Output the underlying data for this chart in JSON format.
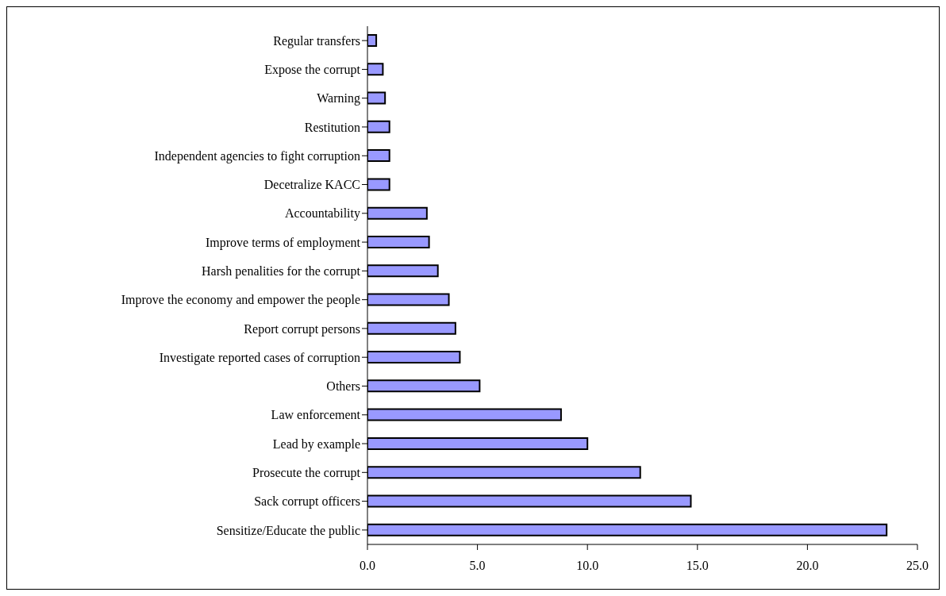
{
  "chart_data": {
    "type": "bar",
    "orientation": "horizontal",
    "categories": [
      "Regular transfers",
      "Expose the corrupt",
      "Warning",
      "Restitution",
      "Independent agencies to fight corruption",
      "Decetralize KACC",
      "Accountability",
      "Improve terms of employment",
      "Harsh penalities for the corrupt",
      "Improve the economy and empower the people",
      "Report corrupt persons",
      "Investigate reported cases of corruption",
      "Others",
      "Law enforcement",
      "Lead by example",
      "Prosecute the corrupt",
      "Sack corrupt officers",
      "Sensitize/Educate the public"
    ],
    "values": [
      0.4,
      0.7,
      0.8,
      1.0,
      1.0,
      1.0,
      2.7,
      2.8,
      3.2,
      3.7,
      4.0,
      4.2,
      5.1,
      8.8,
      10.0,
      12.4,
      14.7,
      23.6
    ],
    "color": "#9999ff",
    "xlim": [
      0,
      25
    ],
    "xticks": [
      {
        "value": 0,
        "label": "0.0"
      },
      {
        "value": 5,
        "label": "5.0"
      },
      {
        "value": 10,
        "label": "10.0"
      },
      {
        "value": 15,
        "label": "15.0"
      },
      {
        "value": 20,
        "label": "20.0"
      },
      {
        "value": 25,
        "label": "25.0"
      }
    ],
    "grid": false,
    "legend": false
  }
}
